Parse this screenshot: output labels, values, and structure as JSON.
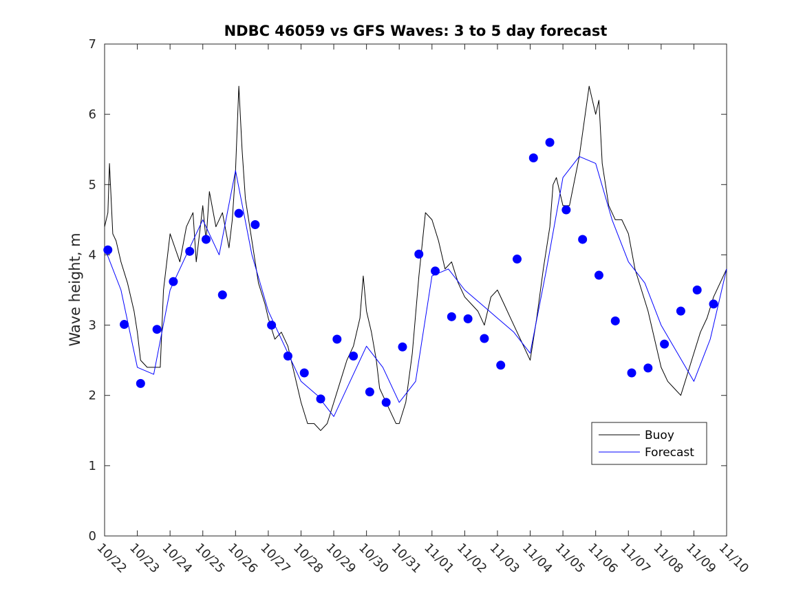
{
  "chart_data": {
    "type": "line",
    "title": "NDBC 46059 vs GFS Waves: 3 to 5 day forecast",
    "xlabel": "",
    "ylabel": "Wave height, m",
    "xlim": [
      0,
      19
    ],
    "ylim": [
      0,
      7
    ],
    "yticks": [
      0,
      1,
      2,
      3,
      4,
      5,
      6,
      7
    ],
    "xtick_labels": [
      "10/22",
      "10/23",
      "10/24",
      "10/25",
      "10/26",
      "10/27",
      "10/28",
      "10/29",
      "10/30",
      "10/31",
      "11/01",
      "11/02",
      "11/03",
      "11/04",
      "11/05",
      "11/06",
      "11/07",
      "11/08",
      "11/09",
      "11/10"
    ],
    "legend": {
      "position": "lower-right",
      "entries": [
        "Buoy",
        "Forecast"
      ]
    },
    "colors": {
      "buoy": "#000000",
      "forecast": "#0000ff",
      "markers": "#0000ff"
    },
    "series": [
      {
        "name": "Buoy",
        "type": "line",
        "x": [
          0,
          0.1,
          0.15,
          0.25,
          0.35,
          0.5,
          0.7,
          0.9,
          1.0,
          1.1,
          1.3,
          1.5,
          1.7,
          1.8,
          2.0,
          2.3,
          2.5,
          2.7,
          2.8,
          3.0,
          3.1,
          3.2,
          3.4,
          3.6,
          3.8,
          3.9,
          4.0,
          4.1,
          4.2,
          4.3,
          4.5,
          4.7,
          4.9,
          5.0,
          5.2,
          5.4,
          5.6,
          5.8,
          6.0,
          6.2,
          6.4,
          6.6,
          6.8,
          7.0,
          7.2,
          7.4,
          7.6,
          7.8,
          7.9,
          8.0,
          8.15,
          8.3,
          8.4,
          8.5,
          8.7,
          8.9,
          9.0,
          9.2,
          9.4,
          9.6,
          9.8,
          10.0,
          10.2,
          10.4,
          10.6,
          10.8,
          11.0,
          11.2,
          11.4,
          11.6,
          11.8,
          12.0,
          12.2,
          12.4,
          12.6,
          12.8,
          13.0,
          13.2,
          13.4,
          13.6,
          13.7,
          13.8,
          14.0,
          14.2,
          14.5,
          14.8,
          15.0,
          15.1,
          15.2,
          15.4,
          15.6,
          15.8,
          16.0,
          16.2,
          16.4,
          16.6,
          16.8,
          17.0,
          17.2,
          17.4,
          17.6,
          17.8,
          18.0,
          18.2,
          18.4,
          18.6,
          18.8,
          19.0
        ],
        "y": [
          4.4,
          4.6,
          5.3,
          4.3,
          4.2,
          3.9,
          3.6,
          3.2,
          2.9,
          2.5,
          2.4,
          2.4,
          2.4,
          3.5,
          4.3,
          3.9,
          4.4,
          4.6,
          3.9,
          4.7,
          4.2,
          4.9,
          4.4,
          4.6,
          4.1,
          4.5,
          5.2,
          6.4,
          5.5,
          4.8,
          4.2,
          3.6,
          3.3,
          3.1,
          2.8,
          2.9,
          2.7,
          2.3,
          1.9,
          1.6,
          1.6,
          1.5,
          1.6,
          1.9,
          2.2,
          2.5,
          2.7,
          3.1,
          3.7,
          3.2,
          2.9,
          2.5,
          2.1,
          2.0,
          1.8,
          1.6,
          1.6,
          1.9,
          2.6,
          3.7,
          4.6,
          4.5,
          4.2,
          3.8,
          3.9,
          3.6,
          3.4,
          3.3,
          3.2,
          3.0,
          3.4,
          3.5,
          3.3,
          3.1,
          2.9,
          2.7,
          2.5,
          3.1,
          3.8,
          4.4,
          5.0,
          5.1,
          4.7,
          4.7,
          5.4,
          6.4,
          6.0,
          6.2,
          5.3,
          4.7,
          4.5,
          4.5,
          4.3,
          3.8,
          3.5,
          3.2,
          2.8,
          2.4,
          2.2,
          2.1,
          2.0,
          2.3,
          2.6,
          2.9,
          3.1,
          3.4,
          3.6,
          3.8
        ]
      },
      {
        "name": "Forecast",
        "type": "line",
        "x": [
          0,
          0.5,
          1.0,
          1.5,
          2.0,
          2.5,
          3.0,
          3.5,
          4.0,
          4.5,
          5.0,
          5.5,
          6.0,
          6.5,
          7.0,
          7.5,
          8.0,
          8.5,
          9.0,
          9.5,
          10.0,
          10.5,
          11.0,
          11.5,
          12.0,
          12.5,
          13.0,
          13.5,
          14.0,
          14.5,
          15.0,
          15.5,
          16.0,
          16.5,
          17.0,
          17.5,
          18.0,
          18.5,
          19.0
        ],
        "y": [
          4.1,
          3.5,
          2.4,
          2.3,
          3.5,
          4.0,
          4.5,
          4.0,
          5.2,
          4.0,
          3.2,
          2.7,
          2.2,
          2.0,
          1.7,
          2.2,
          2.7,
          2.4,
          1.9,
          2.2,
          3.7,
          3.8,
          3.5,
          3.3,
          3.1,
          2.9,
          2.6,
          3.8,
          5.1,
          5.4,
          5.3,
          4.5,
          3.9,
          3.6,
          3.0,
          2.6,
          2.2,
          2.8,
          3.8
        ]
      },
      {
        "name": "Forecast markers",
        "type": "scatter",
        "x": [
          0.1,
          0.6,
          1.1,
          1.6,
          2.1,
          2.6,
          3.1,
          3.6,
          4.1,
          4.6,
          5.1,
          5.6,
          6.1,
          6.6,
          7.1,
          7.6,
          8.1,
          8.6,
          9.1,
          9.6,
          10.1,
          10.6,
          11.1,
          11.6,
          12.1,
          12.6,
          13.1,
          13.6,
          14.1,
          14.6,
          15.1,
          15.6,
          16.1,
          16.6,
          17.1,
          17.6,
          18.1,
          18.6
        ],
        "y": [
          4.07,
          3.01,
          2.17,
          2.94,
          3.62,
          4.05,
          4.22,
          3.43,
          4.59,
          4.43,
          3.0,
          2.56,
          2.32,
          1.95,
          2.8,
          2.56,
          2.05,
          1.9,
          2.69,
          4.01,
          3.77,
          3.12,
          3.09,
          2.81,
          2.43,
          3.94,
          5.38,
          5.6,
          4.64,
          4.22,
          3.71,
          3.06,
          2.32,
          2.39,
          2.73,
          3.2,
          3.5,
          3.3
        ]
      }
    ]
  }
}
